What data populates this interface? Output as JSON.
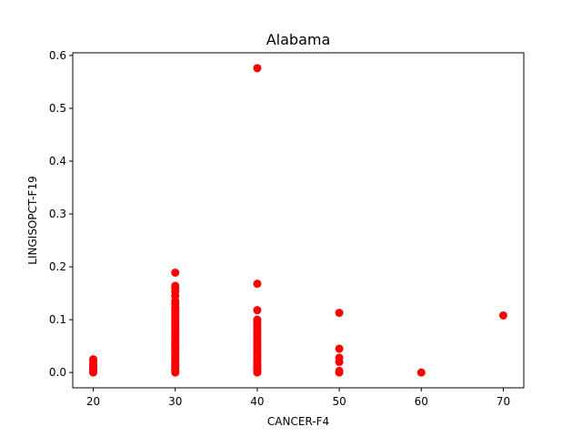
{
  "chart_data": {
    "type": "scatter",
    "title": "Alabama",
    "xlabel": "CANCER-F4",
    "ylabel": "LINGISOPCT-F19",
    "xlim": [
      17.5,
      72.5
    ],
    "ylim": [
      -0.029,
      0.605
    ],
    "xticks": [
      20,
      30,
      40,
      50,
      60,
      70
    ],
    "xtick_labels": [
      "20",
      "30",
      "40",
      "50",
      "60",
      "70"
    ],
    "yticks": [
      0.0,
      0.1,
      0.2,
      0.3,
      0.4,
      0.5,
      0.6
    ],
    "ytick_labels": [
      "0.0",
      "0.1",
      "0.2",
      "0.3",
      "0.4",
      "0.5",
      "0.6"
    ],
    "grid": false,
    "legend": false,
    "marker_color": "#ff0000",
    "points": [
      {
        "x": 20,
        "y": 0.0
      },
      {
        "x": 20,
        "y": 0.002
      },
      {
        "x": 20,
        "y": 0.005
      },
      {
        "x": 20,
        "y": 0.008
      },
      {
        "x": 20,
        "y": 0.012
      },
      {
        "x": 20,
        "y": 0.016
      },
      {
        "x": 20,
        "y": 0.021
      },
      {
        "x": 20,
        "y": 0.025
      },
      {
        "x": 30,
        "y": 0.0
      },
      {
        "x": 30,
        "y": 0.003
      },
      {
        "x": 30,
        "y": 0.006
      },
      {
        "x": 30,
        "y": 0.009
      },
      {
        "x": 30,
        "y": 0.012
      },
      {
        "x": 30,
        "y": 0.015
      },
      {
        "x": 30,
        "y": 0.018
      },
      {
        "x": 30,
        "y": 0.021
      },
      {
        "x": 30,
        "y": 0.025
      },
      {
        "x": 30,
        "y": 0.028
      },
      {
        "x": 30,
        "y": 0.032
      },
      {
        "x": 30,
        "y": 0.036
      },
      {
        "x": 30,
        "y": 0.04
      },
      {
        "x": 30,
        "y": 0.044
      },
      {
        "x": 30,
        "y": 0.048
      },
      {
        "x": 30,
        "y": 0.052
      },
      {
        "x": 30,
        "y": 0.056
      },
      {
        "x": 30,
        "y": 0.06
      },
      {
        "x": 30,
        "y": 0.065
      },
      {
        "x": 30,
        "y": 0.07
      },
      {
        "x": 30,
        "y": 0.075
      },
      {
        "x": 30,
        "y": 0.08
      },
      {
        "x": 30,
        "y": 0.085
      },
      {
        "x": 30,
        "y": 0.09
      },
      {
        "x": 30,
        "y": 0.095
      },
      {
        "x": 30,
        "y": 0.1
      },
      {
        "x": 30,
        "y": 0.106
      },
      {
        "x": 30,
        "y": 0.112
      },
      {
        "x": 30,
        "y": 0.118
      },
      {
        "x": 30,
        "y": 0.124
      },
      {
        "x": 30,
        "y": 0.13
      },
      {
        "x": 30,
        "y": 0.135
      },
      {
        "x": 30,
        "y": 0.145
      },
      {
        "x": 30,
        "y": 0.153
      },
      {
        "x": 30,
        "y": 0.16
      },
      {
        "x": 30,
        "y": 0.164
      },
      {
        "x": 30,
        "y": 0.189
      },
      {
        "x": 40,
        "y": 0.0
      },
      {
        "x": 40,
        "y": 0.003
      },
      {
        "x": 40,
        "y": 0.006
      },
      {
        "x": 40,
        "y": 0.009
      },
      {
        "x": 40,
        "y": 0.012
      },
      {
        "x": 40,
        "y": 0.016
      },
      {
        "x": 40,
        "y": 0.02
      },
      {
        "x": 40,
        "y": 0.024
      },
      {
        "x": 40,
        "y": 0.028
      },
      {
        "x": 40,
        "y": 0.032
      },
      {
        "x": 40,
        "y": 0.036
      },
      {
        "x": 40,
        "y": 0.04
      },
      {
        "x": 40,
        "y": 0.045
      },
      {
        "x": 40,
        "y": 0.05
      },
      {
        "x": 40,
        "y": 0.055
      },
      {
        "x": 40,
        "y": 0.06
      },
      {
        "x": 40,
        "y": 0.065
      },
      {
        "x": 40,
        "y": 0.07
      },
      {
        "x": 40,
        "y": 0.075
      },
      {
        "x": 40,
        "y": 0.08
      },
      {
        "x": 40,
        "y": 0.085
      },
      {
        "x": 40,
        "y": 0.09
      },
      {
        "x": 40,
        "y": 0.095
      },
      {
        "x": 40,
        "y": 0.1
      },
      {
        "x": 40,
        "y": 0.118
      },
      {
        "x": 40,
        "y": 0.168
      },
      {
        "x": 40,
        "y": 0.576
      },
      {
        "x": 50,
        "y": 0.0
      },
      {
        "x": 50,
        "y": 0.003
      },
      {
        "x": 50,
        "y": 0.02
      },
      {
        "x": 50,
        "y": 0.028
      },
      {
        "x": 50,
        "y": 0.045
      },
      {
        "x": 50,
        "y": 0.113
      },
      {
        "x": 60,
        "y": 0.0
      },
      {
        "x": 70,
        "y": 0.108
      }
    ]
  }
}
